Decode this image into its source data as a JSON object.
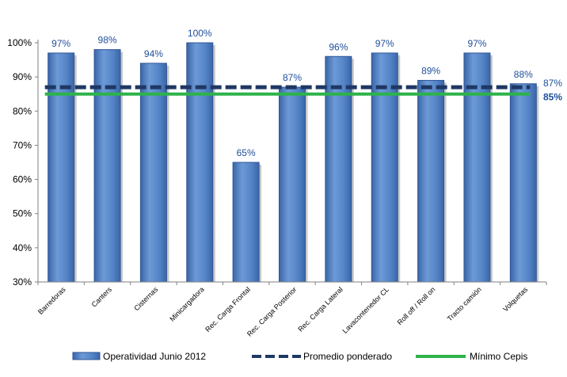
{
  "chart_data": {
    "type": "bar",
    "categories": [
      "Barredoras",
      "Canters",
      "Cisternas",
      "Minicargadora",
      "Rec. Carga Frontal",
      "Rec. Carga Posterior",
      "Rec. Carga Lateral",
      "Lavacontenedor CL",
      "Roll off / Roll on",
      "Tracto camión",
      "Volquetas"
    ],
    "series": [
      {
        "name": "Operatividad Junio 2012",
        "kind": "bar",
        "color": "#4f81bd",
        "values": [
          97,
          98,
          94,
          100,
          65,
          87,
          96,
          97,
          89,
          97,
          88
        ],
        "labels": [
          "97%",
          "98%",
          "94%",
          "100%",
          "65%",
          "87%",
          "96%",
          "97%",
          "89%",
          "97%",
          "88%"
        ]
      },
      {
        "name": "Promedio ponderado",
        "kind": "dashed-line",
        "color": "#1f3864",
        "value": 87,
        "end_label": "87%"
      },
      {
        "name": "Mínimo Cepis",
        "kind": "line",
        "color": "#2db34a",
        "value": 85,
        "end_label": "85%"
      }
    ],
    "xlabel": "",
    "ylabel": "",
    "ylim": [
      30,
      100
    ],
    "yticks": [
      "30%",
      "40%",
      "50%",
      "60%",
      "70%",
      "80%",
      "90%",
      "100%"
    ],
    "ytick_values": [
      30,
      40,
      50,
      60,
      70,
      80,
      90,
      100
    ],
    "grid": false,
    "legend_position": "bottom"
  }
}
